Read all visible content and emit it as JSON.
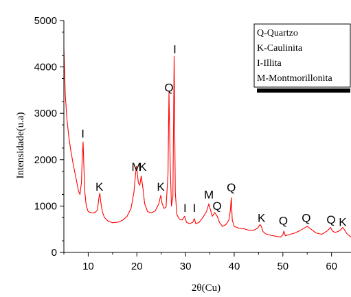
{
  "chart_data": {
    "type": "line",
    "xlabel": "2θ(Cu)",
    "ylabel": "Intensidade(u.a)",
    "xlim": [
      5,
      64
    ],
    "ylim": [
      0,
      5000
    ],
    "xticks": [
      10,
      20,
      30,
      40,
      50,
      60
    ],
    "yticks": [
      0,
      1000,
      2000,
      3000,
      4000,
      5000
    ],
    "grid": false,
    "legend_position": "top-right",
    "series_color": "#ff0000",
    "legend_entries": [
      "Q-Quartzo",
      "K-Caulinita",
      "I-Illita",
      "M-Montmorillonita"
    ],
    "annotations": [
      {
        "label": "I",
        "x": 8.9,
        "y": 2480
      },
      {
        "label": "K",
        "x": 12.3,
        "y": 1330
      },
      {
        "label": "M",
        "x": 19.9,
        "y": 1760
      },
      {
        "label": "K",
        "x": 21.2,
        "y": 1760
      },
      {
        "label": "K",
        "x": 24.9,
        "y": 1330
      },
      {
        "label": "Q",
        "x": 26.6,
        "y": 3470
      },
      {
        "label": "I",
        "x": 27.8,
        "y": 4300
      },
      {
        "label": "I",
        "x": 29.9,
        "y": 870
      },
      {
        "label": "I",
        "x": 31.8,
        "y": 870
      },
      {
        "label": "M",
        "x": 34.8,
        "y": 1160
      },
      {
        "label": "Q",
        "x": 36.5,
        "y": 920
      },
      {
        "label": "Q",
        "x": 39.4,
        "y": 1320
      },
      {
        "label": "K",
        "x": 45.6,
        "y": 660
      },
      {
        "label": "Q",
        "x": 50.1,
        "y": 600
      },
      {
        "label": "Q",
        "x": 54.8,
        "y": 660
      },
      {
        "label": "Q",
        "x": 59.9,
        "y": 620
      },
      {
        "label": "K",
        "x": 62.3,
        "y": 570
      }
    ],
    "x": [
      5.0,
      5.3,
      5.6,
      6.0,
      6.5,
      7.0,
      7.5,
      8.0,
      8.3,
      8.6,
      8.8,
      8.95,
      9.1,
      9.3,
      9.6,
      10.0,
      10.5,
      11.0,
      11.5,
      11.9,
      12.2,
      12.4,
      12.6,
      12.9,
      13.3,
      14.0,
      15.0,
      16.0,
      17.0,
      18.0,
      18.8,
      19.4,
      19.7,
      19.9,
      20.1,
      20.3,
      20.6,
      20.9,
      21.2,
      21.6,
      22.2,
      23.0,
      23.8,
      24.5,
      24.9,
      25.2,
      25.6,
      26.0,
      26.4,
      26.6,
      26.85,
      27.1,
      27.4,
      27.65,
      27.9,
      28.2,
      28.7,
      29.3,
      29.8,
      30.2,
      30.8,
      31.5,
      31.8,
      32.1,
      32.8,
      33.6,
      34.3,
      34.8,
      35.1,
      35.5,
      36.0,
      36.5,
      37.0,
      37.6,
      38.3,
      38.9,
      39.2,
      39.4,
      39.6,
      40.0,
      41.0,
      42.0,
      43.0,
      44.0,
      44.8,
      45.3,
      45.6,
      45.9,
      46.5,
      47.5,
      48.5,
      49.5,
      50.0,
      50.2,
      50.5,
      51.5,
      52.5,
      53.5,
      54.3,
      55.0,
      55.8,
      56.8,
      58.0,
      59.2,
      59.8,
      60.2,
      60.7,
      61.3,
      61.9,
      62.3,
      62.7,
      63.2,
      64.0
    ],
    "y": [
      4400,
      3400,
      2900,
      2500,
      2150,
      1850,
      1600,
      1320,
      1250,
      1500,
      2100,
      2380,
      1900,
      1300,
      1000,
      880,
      860,
      850,
      870,
      920,
      1180,
      1280,
      1080,
      880,
      760,
      680,
      640,
      650,
      690,
      780,
      950,
      1300,
      1650,
      1860,
      1700,
      1500,
      1450,
      1650,
      1420,
      1050,
      880,
      850,
      900,
      1050,
      1230,
      1050,
      950,
      980,
      1700,
      3450,
      1900,
      1000,
      1200,
      4230,
      1300,
      820,
      720,
      700,
      780,
      650,
      620,
      650,
      730,
      620,
      650,
      760,
      880,
      1050,
      920,
      780,
      860,
      780,
      640,
      560,
      600,
      700,
      900,
      1180,
      700,
      560,
      520,
      510,
      480,
      480,
      520,
      600,
      560,
      450,
      400,
      370,
      350,
      330,
      380,
      460,
      360,
      390,
      420,
      470,
      520,
      560,
      500,
      420,
      390,
      470,
      540,
      460,
      430,
      450,
      490,
      540,
      480,
      400,
      330
    ]
  }
}
